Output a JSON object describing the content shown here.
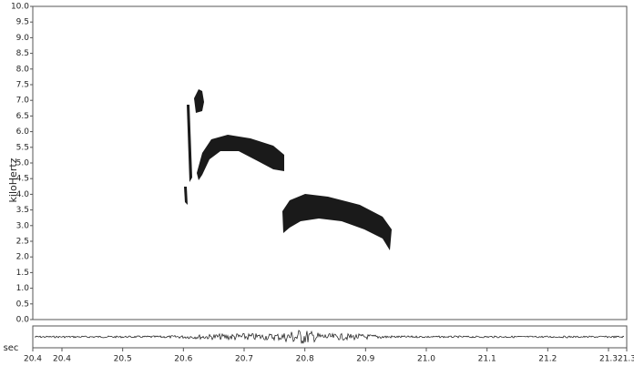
{
  "chart_data": {
    "type": "spectrogram",
    "ylabel": "kiloHertz",
    "xlabel": "sec",
    "ylim": [
      0,
      10
    ],
    "yticks": [
      {
        "value": 0,
        "label": "0.0"
      },
      0.5,
      {
        "value": 1,
        "label": "1.0"
      },
      1.5,
      {
        "value": 2,
        "label": "2.0"
      },
      2.5,
      {
        "value": 3,
        "label": "3.0"
      },
      3.5,
      {
        "value": 4,
        "label": "4.0"
      },
      4.5,
      {
        "value": 5,
        "label": "5.0"
      },
      5.5,
      {
        "value": 6,
        "label": "6.0"
      },
      6.5,
      {
        "value": 7,
        "label": "7.0"
      },
      7.5,
      {
        "value": 8,
        "label": "8.0"
      },
      8.5,
      {
        "value": 9,
        "label": "9.0"
      },
      9.5,
      {
        "value": 10,
        "label": "10.0"
      }
    ],
    "xlim": [
      20.352,
      21.33
    ],
    "xticks": [
      {
        "value": 20.352,
        "label": "20.4"
      },
      20.4,
      20.5,
      20.6,
      20.7,
      20.8,
      20.9,
      {
        "value": 21,
        "label": "21.0"
      },
      21.1,
      21.2,
      21.3,
      {
        "value": 21.33,
        "label": "21.3"
      }
    ]
  }
}
